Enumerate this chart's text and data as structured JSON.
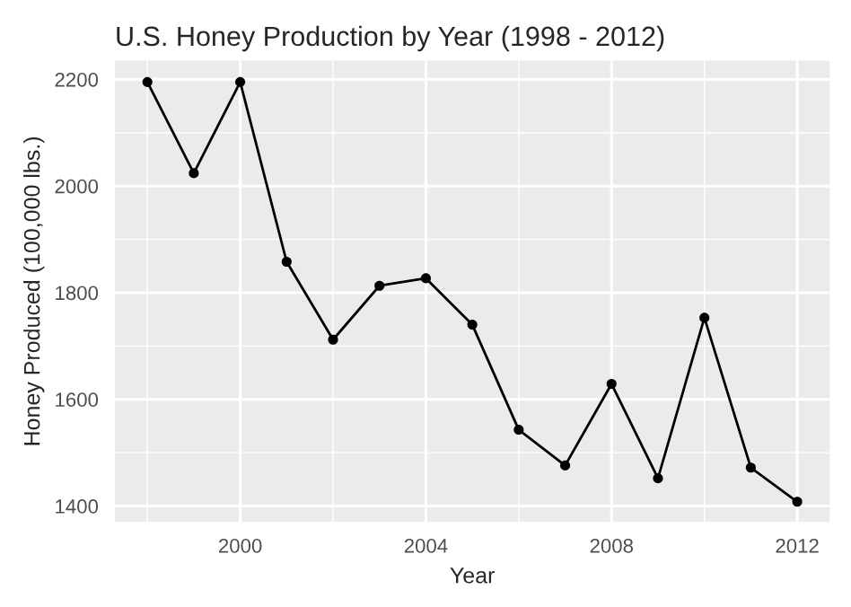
{
  "chart_data": {
    "type": "line",
    "title": "U.S. Honey Production by Year (1998 - 2012)",
    "xlabel": "Year",
    "ylabel": "Honey Produced (100,000 lbs.)",
    "x": [
      1998,
      1999,
      2000,
      2001,
      2002,
      2003,
      2004,
      2005,
      2006,
      2007,
      2008,
      2009,
      2010,
      2011,
      2012
    ],
    "series": [
      {
        "color": "#000000",
        "values": [
          2195,
          2024,
          2195,
          1858,
          1712,
          1813,
          1827,
          1740,
          1543,
          1476,
          1629,
          1452,
          1753,
          1472,
          1408
        ]
      }
    ],
    "xlim": [
      1997.3,
      2012.7
    ],
    "ylim": [
      1370,
      2235
    ],
    "xticks": [
      2000,
      2004,
      2008,
      2012
    ],
    "yticks": [
      1400,
      1600,
      1800,
      2000,
      2200
    ],
    "grid": true,
    "marker": "circle",
    "line_style": "solid"
  }
}
